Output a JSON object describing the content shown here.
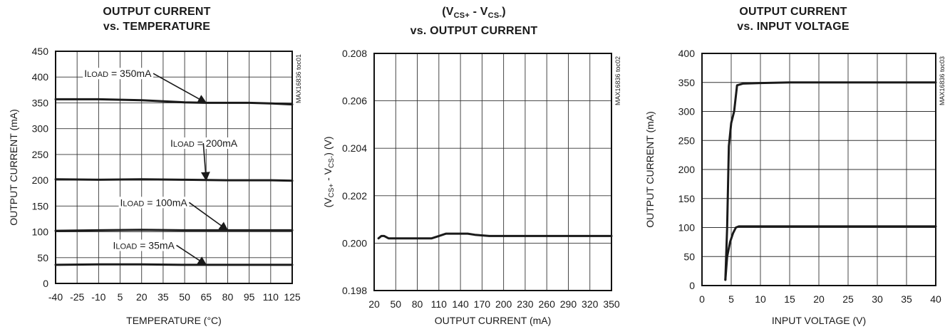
{
  "chart_data": [
    {
      "type": "line",
      "title_line1": "OUTPUT CURRENT",
      "title_line2": "vs. TEMPERATURE",
      "xlabel": "TEMPERATURE (°C)",
      "ylabel": "OUTPUT CURRENT (mA)",
      "watermark": "MAX16836 toc01",
      "xlim": [
        -40,
        125
      ],
      "ylim": [
        0,
        450
      ],
      "x_ticks": [
        -40,
        -25,
        -10,
        5,
        20,
        35,
        50,
        65,
        80,
        95,
        110,
        125
      ],
      "y_ticks": [
        0,
        50,
        100,
        150,
        200,
        250,
        300,
        350,
        400,
        450
      ],
      "grid": true,
      "series": [
        {
          "x": [
            -40,
            -10,
            20,
            50,
            65,
            80,
            95,
            110,
            125
          ],
          "y": [
            357,
            357,
            355,
            351,
            350,
            350,
            350,
            349,
            347
          ]
        },
        {
          "x": [
            -40,
            -10,
            20,
            50,
            80,
            110,
            125
          ],
          "y": [
            202,
            201,
            202,
            201,
            200,
            200,
            199
          ]
        },
        {
          "x": [
            -40,
            -10,
            20,
            50,
            80,
            110,
            125
          ],
          "y": [
            102,
            103,
            104,
            103,
            103,
            103,
            103
          ]
        },
        {
          "x": [
            -40,
            -10,
            20,
            50,
            80,
            110,
            125
          ],
          "y": [
            36,
            37,
            37,
            36,
            36,
            36,
            36
          ]
        }
      ],
      "annotations": [
        {
          "sub": "LOAD",
          "text": " = 350mA",
          "x": -20,
          "y": 400,
          "arrow_to": [
            65,
            350
          ]
        },
        {
          "sub": "LOAD",
          "text": " = 200mA",
          "x": 40,
          "y": 265,
          "arrow_to": [
            65,
            200
          ]
        },
        {
          "sub": "LOAD",
          "text": " = 100mA",
          "x": 5,
          "y": 150,
          "arrow_to": [
            80,
            103
          ]
        },
        {
          "sub": "LOAD",
          "text": " = 35mA",
          "x": 0,
          "y": 67,
          "arrow_to": [
            65,
            36
          ]
        }
      ]
    },
    {
      "type": "line",
      "title_line1": "(VCS+ - VCS-)",
      "title_line2": "vs. OUTPUT CURRENT",
      "xlabel": "OUTPUT CURRENT (mA)",
      "ylabel": "(VCS+ - VCS-) (V)",
      "watermark": "MAX16836 toc02",
      "xlim": [
        20,
        350
      ],
      "ylim": [
        0.198,
        0.208
      ],
      "x_ticks": [
        20,
        50,
        80,
        110,
        140,
        170,
        200,
        230,
        260,
        290,
        320,
        350
      ],
      "x_tick_labels": [
        "20",
        "50",
        "80",
        "110",
        "140",
        "170",
        "200",
        "230",
        "260",
        "290",
        "320",
        "350"
      ],
      "y_ticks": [
        0.198,
        0.2,
        0.202,
        0.204,
        0.206,
        0.208
      ],
      "y_tick_labels": [
        "0.198",
        "0.200",
        "0.202",
        "0.204",
        "0.206",
        "0.208"
      ],
      "grid": true,
      "series": [
        {
          "x": [
            26,
            30,
            34,
            40,
            50,
            80,
            100,
            110,
            120,
            130,
            140,
            150,
            160,
            180,
            200,
            230,
            260,
            290,
            320,
            350
          ],
          "y": [
            0.2002,
            0.2003,
            0.2003,
            0.2002,
            0.2002,
            0.2002,
            0.2002,
            0.2003,
            0.2004,
            0.2004,
            0.2004,
            0.2004,
            0.20035,
            0.2003,
            0.2003,
            0.2003,
            0.2003,
            0.2003,
            0.2003,
            0.2003
          ]
        }
      ]
    },
    {
      "type": "line",
      "title_line1": "OUTPUT CURRENT",
      "title_line2": "vs. INPUT VOLTAGE",
      "xlabel": "INPUT VOLTAGE (V)",
      "ylabel": "OUTPUT CURRENT (mA)",
      "watermark": "MAX16836 toc03",
      "xlim": [
        0,
        40
      ],
      "ylim": [
        0,
        400
      ],
      "x_ticks": [
        0,
        5,
        10,
        15,
        20,
        25,
        30,
        35,
        40
      ],
      "y_ticks": [
        0,
        50,
        100,
        150,
        200,
        250,
        300,
        350,
        400
      ],
      "grid": true,
      "series": [
        {
          "x": [
            4,
            4.3,
            4.6,
            5,
            5.5,
            6,
            7,
            10,
            15,
            20,
            30,
            40
          ],
          "y": [
            10,
            100,
            240,
            280,
            300,
            345,
            348,
            349,
            350,
            350,
            350,
            350
          ]
        },
        {
          "x": [
            4,
            4.3,
            4.8,
            5.3,
            5.8,
            6.3,
            10,
            20,
            30,
            40
          ],
          "y": [
            10,
            50,
            75,
            90,
            100,
            102,
            102,
            102,
            102,
            102
          ]
        }
      ]
    }
  ]
}
